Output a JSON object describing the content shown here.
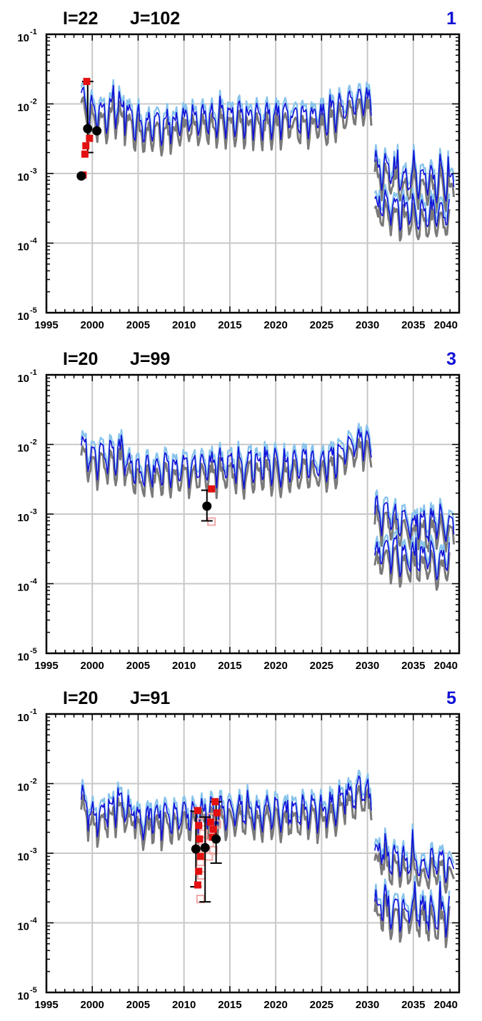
{
  "figure": {
    "clipped_title": ""
  },
  "chart_data": [
    {
      "type": "line",
      "title_i": "I=22",
      "title_j": "J=102",
      "panel_number": "1",
      "x_ticks": [
        "1995",
        "2000",
        "2005",
        "2010",
        "2015",
        "2020",
        "2025",
        "2030",
        "2035",
        "2040"
      ],
      "xlim": [
        1995,
        2040
      ],
      "y_scale": "log",
      "ylim": [
        1e-05,
        0.1
      ],
      "y_tick_values": [
        1e-05,
        0.0001,
        0.001,
        0.01,
        0.1
      ],
      "y_tick_exponents": [
        "-5",
        "-4",
        "-3",
        "-2",
        "-1"
      ],
      "y_tick_base": "10",
      "grid": true,
      "series": [
        {
          "x": [
            1998.8,
            2000,
            2002.5,
            2005,
            2010,
            2015,
            2020,
            2025,
            2029.7,
            2030.5
          ],
          "values": [
            0.012,
            0.007,
            0.009,
            0.005,
            0.0055,
            0.0065,
            0.0065,
            0.0065,
            0.012,
            0.0095
          ]
        },
        {
          "x": [
            2030.8,
            2035,
            2039.5
          ],
          "values": [
            0.0012,
            0.0008,
            0.0008
          ]
        },
        {
          "x": [
            2030.8,
            2035,
            2039
          ],
          "values": [
            0.00035,
            0.00028,
            0.00025
          ]
        }
      ],
      "observations": [
        {
          "x": 1998.8,
          "y": 0.00092
        },
        {
          "x": 1999.5,
          "y": 0.0044,
          "err_low": 0.002,
          "err_high": 0.021
        },
        {
          "x": 2000.5,
          "y": 0.0041
        }
      ],
      "samples": [
        {
          "x": 1999.4,
          "y": 0.021
        },
        {
          "x": 1999.7,
          "y": 0.0032
        },
        {
          "x": 1999.3,
          "y": 0.0025
        },
        {
          "x": 1999.2,
          "y": 0.0019
        },
        {
          "x": 1999.0,
          "y": 0.00095
        }
      ],
      "faint_samples": []
    },
    {
      "type": "line",
      "title_i": "I=20",
      "title_j": "J=99",
      "panel_number": "3",
      "x_ticks": [
        "1995",
        "2000",
        "2005",
        "2010",
        "2015",
        "2020",
        "2025",
        "2030",
        "2035",
        "2040"
      ],
      "xlim": [
        1995,
        2040
      ],
      "y_scale": "log",
      "ylim": [
        1e-05,
        0.1
      ],
      "y_tick_values": [
        1e-05,
        0.0001,
        0.001,
        0.01,
        0.1
      ],
      "y_tick_exponents": [
        "-5",
        "-4",
        "-3",
        "-2",
        "-1"
      ],
      "y_tick_base": "10",
      "grid": true,
      "series": [
        {
          "x": [
            1998.8,
            2000,
            2003,
            2005,
            2010,
            2015,
            2020,
            2025,
            2029.7,
            2030.5
          ],
          "values": [
            0.011,
            0.006,
            0.0075,
            0.004,
            0.0045,
            0.005,
            0.005,
            0.005,
            0.012,
            0.0085
          ]
        },
        {
          "x": [
            2030.8,
            2035,
            2039.5
          ],
          "values": [
            0.0011,
            0.0007,
            0.0008
          ]
        },
        {
          "x": [
            2030.8,
            2035,
            2039
          ],
          "values": [
            0.00028,
            0.00025,
            0.00022
          ]
        }
      ],
      "observations": [
        {
          "x": 2012.5,
          "y": 0.0013,
          "err_low": 0.0008,
          "err_high": 0.0022
        }
      ],
      "samples": [
        {
          "x": 2013.0,
          "y": 0.0023
        }
      ],
      "faint_samples": [
        {
          "x": 2013.0,
          "y": 0.00078
        }
      ]
    },
    {
      "type": "line",
      "title_i": "I=20",
      "title_j": "J=91",
      "panel_number": "5",
      "x_ticks": [
        "1995",
        "2000",
        "2005",
        "2010",
        "2015",
        "2020",
        "2025",
        "2030",
        "2035",
        "2040"
      ],
      "xlim": [
        1995,
        2040
      ],
      "y_scale": "log",
      "ylim": [
        1e-05,
        0.1
      ],
      "y_tick_values": [
        1e-05,
        0.0001,
        0.001,
        0.01,
        0.1
      ],
      "y_tick_exponents": [
        "-5",
        "-4",
        "-3",
        "-2",
        "-1"
      ],
      "y_tick_base": "10",
      "grid": true,
      "series": [
        {
          "x": [
            1998.8,
            2000,
            2003,
            2005,
            2010,
            2015,
            2020,
            2025,
            2029.7,
            2030.5
          ],
          "values": [
            0.0055,
            0.0035,
            0.005,
            0.003,
            0.0035,
            0.004,
            0.004,
            0.004,
            0.0085,
            0.005
          ]
        },
        {
          "x": [
            2030.8,
            2035,
            2039.5
          ],
          "values": [
            0.001,
            0.0007,
            0.0007
          ]
        },
        {
          "x": [
            2030.8,
            2035,
            2039
          ],
          "values": [
            0.00018,
            0.00015,
            0.00013
          ]
        }
      ],
      "observations": [
        {
          "x": 2011.3,
          "y": 0.00115,
          "err_low": 0.00033,
          "err_high": 0.004
        },
        {
          "x": 2012.3,
          "y": 0.0012,
          "err_low": 0.0002,
          "err_high": 0.0033
        },
        {
          "x": 2013.5,
          "y": 0.0016,
          "err_low": 0.00072,
          "err_high": 0.0055
        }
      ],
      "samples": [
        {
          "x": 2011.5,
          "y": 0.0041
        },
        {
          "x": 2011.6,
          "y": 0.0025
        },
        {
          "x": 2011.7,
          "y": 0.0016
        },
        {
          "x": 2011.8,
          "y": 0.0009
        },
        {
          "x": 2011.6,
          "y": 0.00055
        },
        {
          "x": 2011.5,
          "y": 0.00035
        },
        {
          "x": 2012.9,
          "y": 0.0028
        },
        {
          "x": 2013.2,
          "y": 0.0022
        },
        {
          "x": 2013.4,
          "y": 0.0055
        },
        {
          "x": 2013.6,
          "y": 0.0038
        },
        {
          "x": 2013.1,
          "y": 0.0017
        }
      ],
      "faint_samples": [
        {
          "x": 2011.9,
          "y": 0.0028
        },
        {
          "x": 2012.1,
          "y": 0.0019
        },
        {
          "x": 2012.0,
          "y": 0.0012
        },
        {
          "x": 2011.8,
          "y": 0.00075
        },
        {
          "x": 2011.9,
          "y": 0.00048
        },
        {
          "x": 2011.8,
          "y": 0.00022
        },
        {
          "x": 2012.8,
          "y": 0.0014
        },
        {
          "x": 2013.2,
          "y": 0.0011
        },
        {
          "x": 2013.0,
          "y": 0.0033
        },
        {
          "x": 2013.6,
          "y": 0.0026
        },
        {
          "x": 2012.7,
          "y": 0.0009
        }
      ]
    }
  ],
  "colors": {
    "model_main": "#1010d8",
    "model_band": "#88c4ec",
    "model_low": "#7a7a7a",
    "obs": "#000000",
    "sample": "#e41010",
    "sample_faint": "#f0a8a8",
    "grid": "#c8c8c8",
    "panel_number": "#1010d8"
  }
}
